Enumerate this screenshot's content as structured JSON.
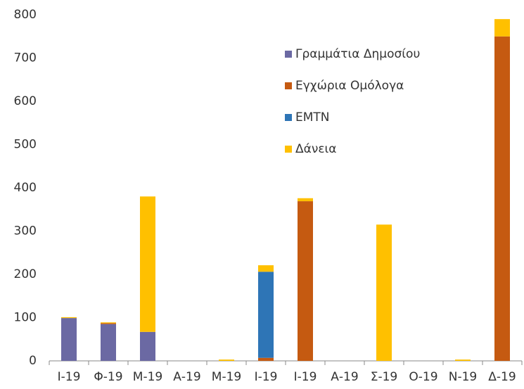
{
  "chart_data": {
    "type": "stacked_bar",
    "categories": [
      "Ι-19",
      "Φ-19",
      "Μ-19",
      "Α-19",
      "Μ-19",
      "Ι-19",
      "Ι-19",
      "Α-19",
      "Σ-19",
      "Ο-19",
      "Ν-19",
      "Δ-19"
    ],
    "series": [
      {
        "name": "Γραμμάτια Δημοσίου",
        "color": "#6b69a3",
        "values": [
          99,
          85,
          67,
          0,
          0,
          0,
          0,
          0,
          0,
          0,
          0,
          0
        ]
      },
      {
        "name": "Εγχώρια Ομόλογα",
        "color": "#c55a11",
        "values": [
          0,
          2,
          0,
          0,
          0,
          7,
          369,
          0,
          0,
          0,
          0,
          750
        ]
      },
      {
        "name": "EMTN",
        "color": "#2e75b6",
        "values": [
          0,
          0,
          0,
          0,
          0,
          199,
          0,
          0,
          0,
          0,
          0,
          0
        ]
      },
      {
        "name": "Δάνεια",
        "color": "#ffc000",
        "values": [
          2,
          2,
          313,
          0,
          3,
          15,
          7,
          0,
          315,
          0,
          3,
          40
        ]
      }
    ],
    "ylim": [
      0,
      800
    ],
    "yticks": [
      0,
      100,
      200,
      300,
      400,
      500,
      600,
      700,
      800
    ],
    "legend": "upper-right"
  }
}
